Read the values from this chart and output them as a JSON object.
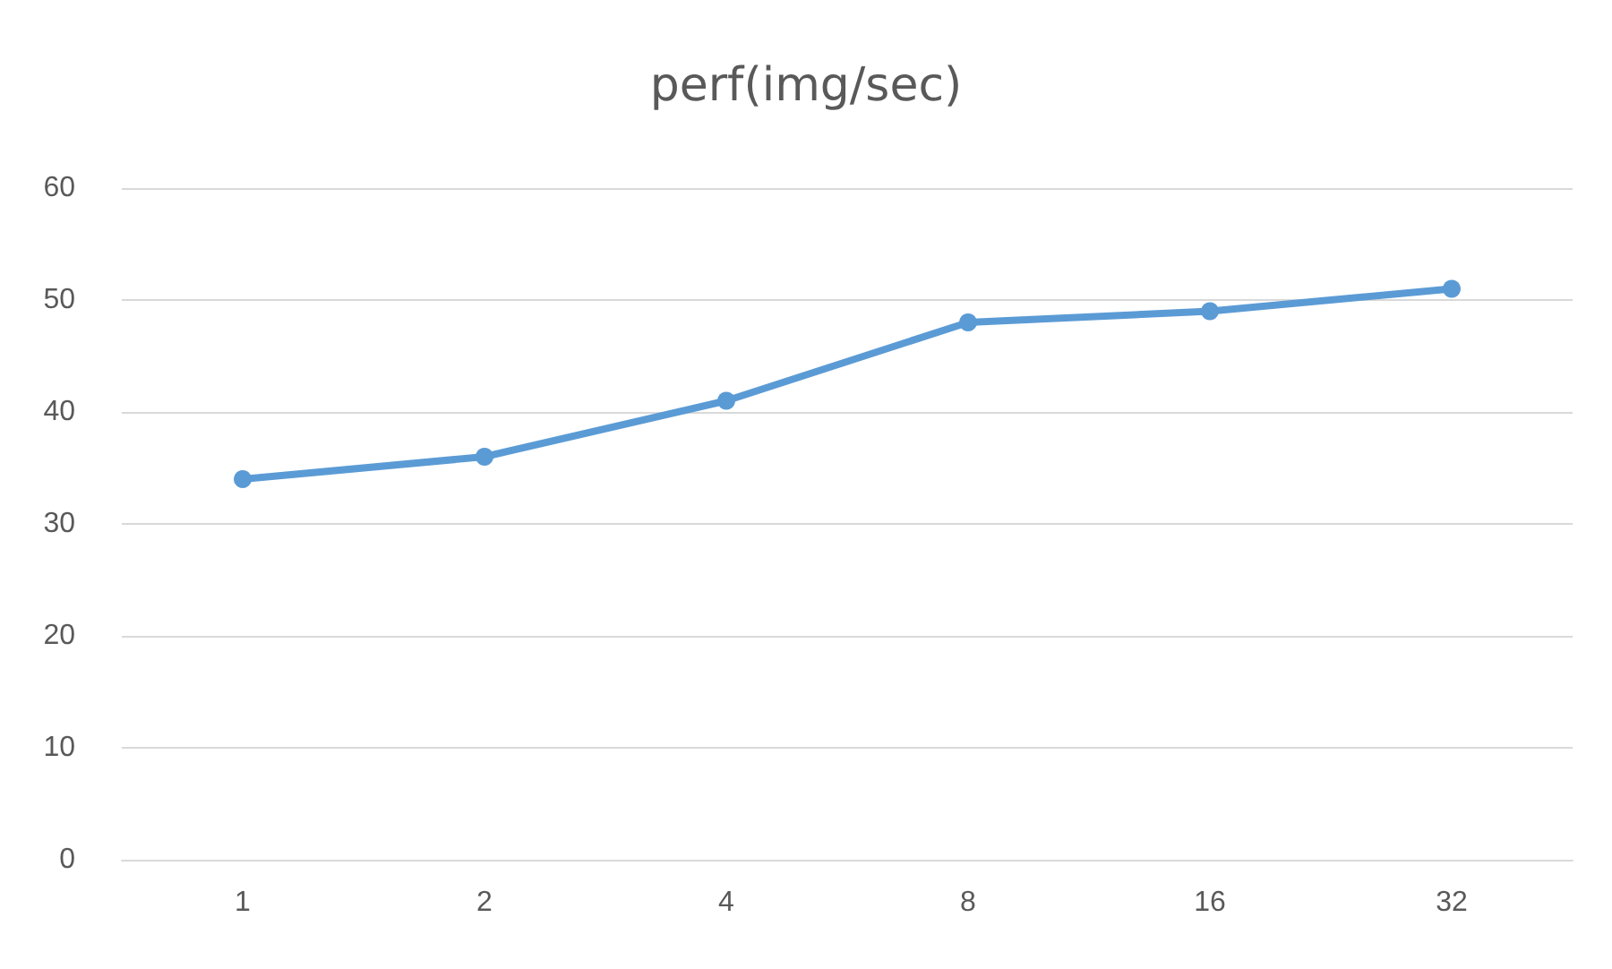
{
  "chart_data": {
    "type": "line",
    "title": "perf(img/sec)",
    "categories": [
      "1",
      "2",
      "4",
      "8",
      "16",
      "32"
    ],
    "series": [
      {
        "color": "#5b9bd5",
        "values": [
          34,
          36,
          41,
          48,
          49,
          51
        ]
      }
    ],
    "ylim": [
      0,
      60
    ],
    "yticks": [
      0,
      10,
      20,
      30,
      40,
      50,
      60
    ],
    "grid": "y",
    "marker": "circle",
    "line_style": "solid"
  }
}
